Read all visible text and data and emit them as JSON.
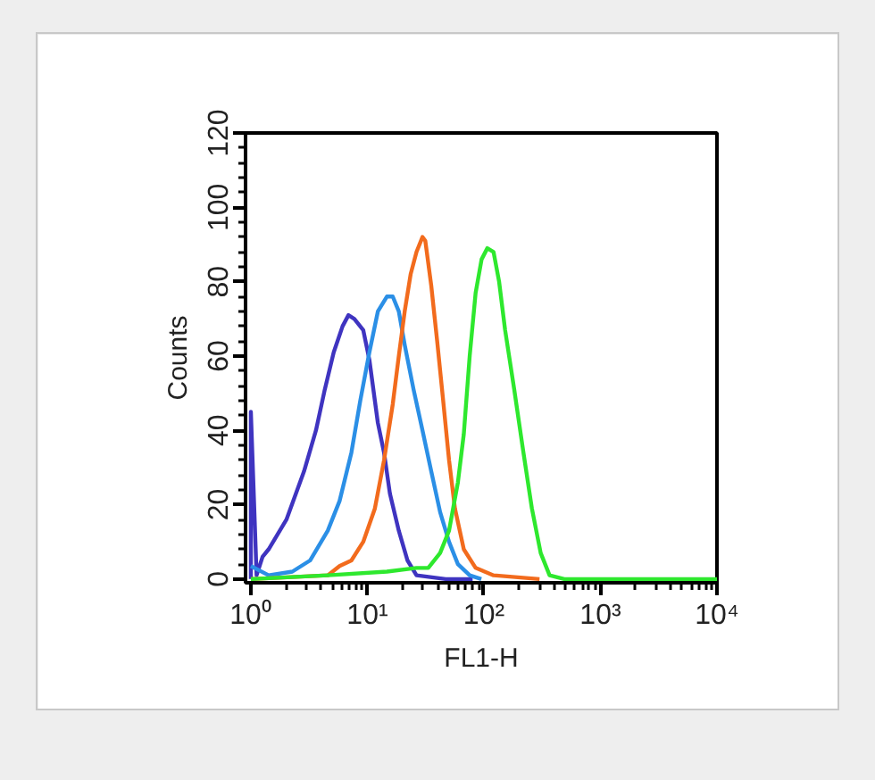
{
  "chart_data": {
    "type": "line",
    "xlabel": "FL1-H",
    "ylabel": "Counts",
    "log": "x",
    "xlim": [
      0.9,
      10000
    ],
    "xticks": [
      {
        "value": 1,
        "label": "10⁰"
      },
      {
        "value": 10,
        "label": "10¹"
      },
      {
        "value": 100,
        "label": "10²"
      },
      {
        "value": 1000,
        "label": "10³"
      },
      {
        "value": 10000,
        "label": "10⁴"
      }
    ],
    "ylim": [
      -1,
      120
    ],
    "yticks": [
      0,
      20,
      40,
      60,
      80,
      100,
      120
    ],
    "grid": false,
    "marker": "none",
    "line_style": "solid",
    "series": [
      {
        "color": "#3f34c0",
        "x": [
          1,
          1,
          1.12,
          1.26,
          1.42,
          2.02,
          2.86,
          3.62,
          4.31,
          5.14,
          6.12,
          6.88,
          7.73,
          9.21,
          10.4,
          12.3,
          13.9,
          15.6,
          18.6,
          22.1,
          26.4,
          47,
          80
        ],
        "values": [
          0,
          45,
          1,
          6,
          8,
          16,
          29,
          40,
          51,
          61,
          68,
          71,
          70,
          67,
          59,
          42,
          34,
          23,
          13,
          5,
          1,
          0,
          0
        ]
      },
      {
        "color": "#2b8fe6",
        "x": [
          1,
          1.42,
          2.27,
          3.22,
          4.57,
          5.77,
          7.29,
          8.69,
          10.4,
          12.3,
          14.7,
          16.5,
          18.6,
          20.9,
          24.9,
          29.7,
          35.3,
          42.1,
          50.2,
          59.8,
          75.5,
          95
        ],
        "values": [
          3.5,
          1,
          2,
          5,
          13,
          21,
          34,
          48,
          61,
          72,
          76,
          76,
          72,
          63,
          51,
          40,
          29,
          18,
          10,
          4,
          1,
          0
        ]
      },
      {
        "color": "#f26b1d",
        "x": [
          1,
          4.57,
          5.77,
          7.29,
          9.21,
          11.6,
          13.9,
          16.5,
          18.6,
          20.9,
          23.5,
          26.4,
          29.7,
          31.4,
          35.3,
          39.7,
          44.7,
          50.2,
          56.4,
          67.2,
          84.9,
          121,
          300
        ],
        "values": [
          0,
          1,
          3.5,
          5,
          10,
          19,
          32,
          47,
          60,
          72,
          82,
          88,
          92,
          91,
          79,
          64,
          48,
          32,
          19,
          8,
          3,
          1,
          0
        ]
      },
      {
        "color": "#2ee82e",
        "x": [
          1,
          4.57,
          14.7,
          26.4,
          33.3,
          42.1,
          50.2,
          59.8,
          67.2,
          75.5,
          84.9,
          95.5,
          107,
          121,
          135,
          152,
          182,
          216,
          258,
          307,
          366,
          490,
          10000
        ],
        "values": [
          0,
          1,
          2,
          3,
          3,
          7,
          13,
          26,
          39,
          60,
          77,
          86,
          89,
          88,
          80,
          67,
          51,
          35,
          19,
          7,
          1,
          0,
          0
        ]
      }
    ]
  }
}
